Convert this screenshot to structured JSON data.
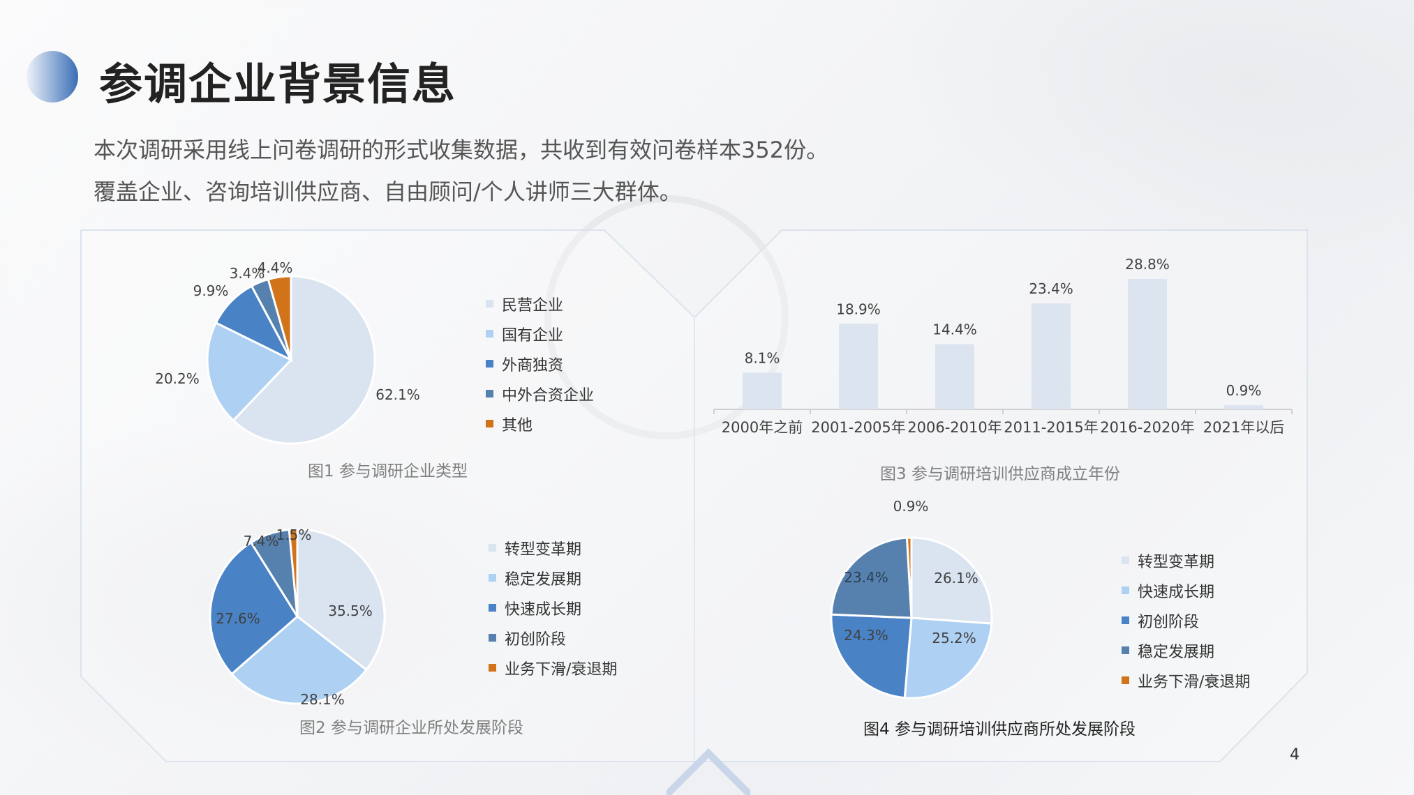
{
  "header": {
    "title": "参调企业背景信息",
    "subtitle_line1": "本次调研采用线上问卷调研的形式收集数据，共收到有效问卷样本352份。",
    "subtitle_line2": "覆盖企业、咨询培训供应商、自由顾问/个人讲师三大群体。"
  },
  "page_number": "4",
  "colors": {
    "very_light_blue": "#dae3f0",
    "light_blue": "#aed0f2",
    "medium_blue": "#4a82c6",
    "steel_blue": "#5681ae",
    "orange": "#d07319",
    "bar_fill": "#dce4f0"
  },
  "chart_data": [
    {
      "type": "pie",
      "caption": "图1 参与调研企业类型",
      "slices": [
        {
          "label": "民营企业",
          "value": 62.1,
          "value_label": "62.1%",
          "color": "#dae3f0"
        },
        {
          "label": "国有企业",
          "value": 20.2,
          "value_label": "20.2%",
          "color": "#aed0f2"
        },
        {
          "label": "外商独资",
          "value": 9.9,
          "value_label": "9.9%",
          "color": "#4a82c6"
        },
        {
          "label": "中外合资企业",
          "value": 3.4,
          "value_label": "3.4%",
          "color": "#5681ae"
        },
        {
          "label": "其他",
          "value": 4.4,
          "value_label": "4.4%",
          "color": "#d07319"
        }
      ]
    },
    {
      "type": "pie",
      "caption": "图2 参与调研企业所处发展阶段",
      "slices": [
        {
          "label": "转型变革期",
          "value": 35.5,
          "value_label": "35.5%",
          "color": "#dae3f0"
        },
        {
          "label": "稳定发展期",
          "value": 28.1,
          "value_label": "28.1%",
          "color": "#aed0f2"
        },
        {
          "label": "快速成长期",
          "value": 27.6,
          "value_label": "27.6%",
          "color": "#4a82c6"
        },
        {
          "label": "初创阶段",
          "value": 7.4,
          "value_label": "7.4%",
          "color": "#5681ae"
        },
        {
          "label": "业务下滑/衰退期",
          "value": 1.5,
          "value_label": "1.5%",
          "color": "#d07319"
        }
      ]
    },
    {
      "type": "bar",
      "caption": "图3 参与调研培训供应商成立年份",
      "categories": [
        "2000年之前",
        "2001-2005年",
        "2006-2010年",
        "2011-2015年",
        "2016-2020年",
        "2021年以后"
      ],
      "values": [
        8.1,
        18.9,
        14.4,
        23.4,
        28.8,
        0.9
      ],
      "value_labels": [
        "8.1%",
        "18.9%",
        "14.4%",
        "23.4%",
        "28.8%",
        "0.9%"
      ],
      "unit": "%",
      "ylim": [
        0,
        30
      ],
      "grid": false,
      "color": "#dce4f0"
    },
    {
      "type": "pie",
      "caption": "图4 参与调研培训供应商所处发展阶段",
      "slices": [
        {
          "label": "转型变革期",
          "value": 26.1,
          "value_label": "26.1%",
          "color": "#dae3f0"
        },
        {
          "label": "快速成长期",
          "value": 25.2,
          "value_label": "25.2%",
          "color": "#aed0f2"
        },
        {
          "label": "初创阶段",
          "value": 24.3,
          "value_label": "24.3%",
          "color": "#4a82c6"
        },
        {
          "label": "稳定发展期",
          "value": 23.4,
          "value_label": "23.4%",
          "color": "#5681ae"
        },
        {
          "label": "业务下滑/衰退期",
          "value": 0.9,
          "value_label": "0.9%",
          "color": "#d07319"
        }
      ]
    }
  ]
}
